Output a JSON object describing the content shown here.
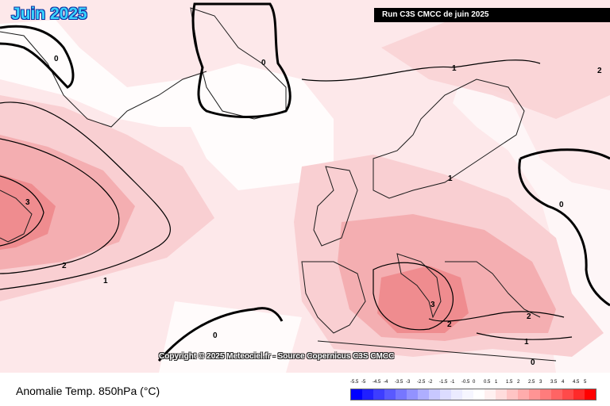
{
  "title": "Juin 2025",
  "run_label": "Run C3S CMCC de juin 2025",
  "copyright": "Copyright © 2025 Meteociel.fr - Source Copernicus C3S CMCC",
  "legend": {
    "title": "Anomalie Temp. 850hPa (°C)",
    "ticks": [
      "-5.5",
      "-5",
      "-4.5",
      "-4",
      "-3.5",
      "-3",
      "-2.5",
      "-2",
      "-1.5",
      "-1",
      "-0.5",
      "0",
      "0.5",
      "1",
      "1.5",
      "2",
      "2.5",
      "3",
      "3.5",
      "4",
      "4.5",
      "5"
    ],
    "colors": [
      "#0000ff",
      "#2020ff",
      "#3d3dff",
      "#5959ff",
      "#7676ff",
      "#9292ff",
      "#aeaeff",
      "#c8c8ff",
      "#dcdcff",
      "#ebebff",
      "#f6f6ff",
      "#ffffff",
      "#fff0f0",
      "#ffdcdc",
      "#ffc4c4",
      "#ffacac",
      "#ff9494",
      "#ff7c7c",
      "#ff6464",
      "#ff4a4a",
      "#ff2a2a",
      "#ff0000"
    ]
  },
  "contour_labels": [
    "0",
    "0",
    "0",
    "0",
    "0",
    "1",
    "1",
    "1",
    "1",
    "2",
    "2",
    "2",
    "2",
    "3",
    "3"
  ],
  "colors": {
    "ocean_base": "#fde8ea",
    "warm_1": "#f9cfd2",
    "warm_2": "#f4aeb1",
    "warm_3": "#ef8c8f",
    "cool": "#eeeeff"
  }
}
